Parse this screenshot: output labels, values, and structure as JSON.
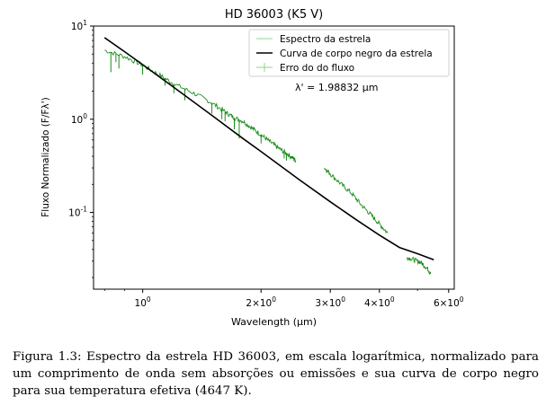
{
  "chart_data": {
    "type": "line",
    "title": "HD 36003 (K5 V)",
    "xlabel": "Wavelength (μm)",
    "ylabel": "Fluxo Normalizado (F/Fλ')",
    "xscale": "log",
    "yscale": "log",
    "xlim": [
      0.75,
      6.2
    ],
    "ylim": [
      0.015,
      10
    ],
    "x_ticks": [
      1,
      2,
      3,
      4,
      6
    ],
    "x_tick_labels": [
      "10^0",
      "2×10^0",
      "3×10^0",
      "4×10^0",
      "6×10^0"
    ],
    "y_ticks": [
      0.1,
      1,
      10
    ],
    "y_tick_labels": [
      "10^-1",
      "10^0",
      "10^1"
    ],
    "grid": false,
    "legend_position": "top-right",
    "legend": [
      {
        "label": "Espectro da estrela",
        "color": "#8fd48f",
        "style": "line"
      },
      {
        "label": "Curva de corpo negro da estrela",
        "color": "#000000",
        "style": "line"
      },
      {
        "label": "Erro do do fluxo",
        "color": "#8fd48f",
        "style": "errorbar"
      }
    ],
    "annotation": "λ' = 1.98832 μm",
    "series": [
      {
        "name": "Curva de corpo negro da estrela",
        "color": "#000000",
        "x": [
          0.8,
          0.9,
          1.0,
          1.2,
          1.5,
          1.8,
          2.0,
          2.5,
          3.0,
          3.5,
          4.0,
          4.5,
          5.0,
          5.5
        ],
        "y": [
          7.5,
          5.3,
          3.85,
          2.2,
          1.1,
          0.62,
          0.45,
          0.225,
          0.13,
          0.083,
          0.057,
          0.042,
          0.036,
          0.031
        ]
      },
      {
        "name": "Espectro da estrela",
        "color": "#008000",
        "segments": [
          {
            "x": [
              0.8,
              0.9,
              1.0,
              1.1,
              1.2,
              1.35,
              1.5,
              1.62,
              1.7,
              1.8,
              1.9,
              2.0,
              2.1,
              2.2,
              2.3,
              2.4,
              2.45
            ],
            "y": [
              5.5,
              4.7,
              3.8,
              3.0,
              2.4,
              1.9,
              1.5,
              1.2,
              1.05,
              0.95,
              0.8,
              0.68,
              0.58,
              0.5,
              0.44,
              0.39,
              0.36
            ]
          },
          {
            "x": [
              2.9,
              3.0,
              3.2,
              3.4,
              3.6,
              3.8,
              4.0,
              4.2
            ],
            "y": [
              0.3,
              0.26,
              0.2,
              0.16,
              0.12,
              0.095,
              0.075,
              0.06
            ]
          },
          {
            "x": [
              4.7,
              4.9,
              5.1,
              5.3,
              5.4
            ],
            "y": [
              0.033,
              0.031,
              0.029,
              0.025,
              0.022
            ]
          }
        ],
        "absorption_lines": [
          {
            "x": 0.83,
            "y": 3.2
          },
          {
            "x": 0.855,
            "y": 4.1
          },
          {
            "x": 0.87,
            "y": 3.5
          },
          {
            "x": 1.0,
            "y": 3.0
          },
          {
            "x": 1.14,
            "y": 2.3
          },
          {
            "x": 1.2,
            "y": 1.9
          },
          {
            "x": 1.28,
            "y": 1.6
          },
          {
            "x": 1.5,
            "y": 1.15
          },
          {
            "x": 1.59,
            "y": 1.0
          },
          {
            "x": 1.62,
            "y": 0.95
          },
          {
            "x": 1.71,
            "y": 0.78
          },
          {
            "x": 1.76,
            "y": 0.62
          },
          {
            "x": 2.0,
            "y": 0.55
          },
          {
            "x": 2.29,
            "y": 0.38
          },
          {
            "x": 2.32,
            "y": 0.36
          }
        ]
      }
    ]
  },
  "caption": "Figura 1.3: Espectro da estrela HD 36003, em escala logarítmica, normalizado para um comprimento de onda sem absorções ou emissões e sua curva de corpo negro para sua temperatura efetiva (4647 K)."
}
